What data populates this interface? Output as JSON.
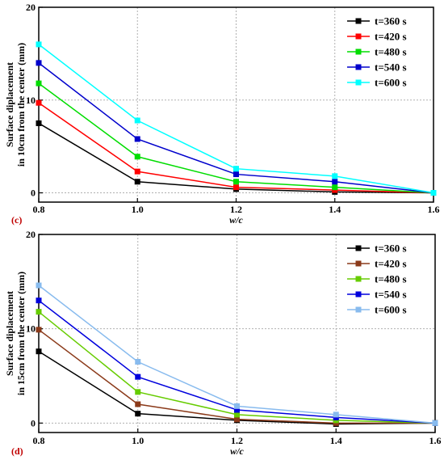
{
  "chart_data": [
    {
      "type": "line",
      "panel_label": "(c)",
      "xlabel": "w/c",
      "ylabel": [
        "Surface diplacement",
        "in 10cm from the center (mm)"
      ],
      "x": [
        0.8,
        1.0,
        1.2,
        1.4,
        1.6
      ],
      "xticks": [
        "0.8",
        "1.0",
        "1.2",
        "1.4",
        "1.6"
      ],
      "yticks": [
        "0",
        "10",
        "20"
      ],
      "xlim": [
        0.8,
        1.6
      ],
      "ylim": [
        -1,
        20
      ],
      "grid": true,
      "legend_position": "top-right",
      "series": [
        {
          "name": "t=360 s",
          "color": "#000000",
          "values": [
            7.5,
            1.2,
            0.4,
            0.1,
            0.0
          ]
        },
        {
          "name": "t=420 s",
          "color": "#ff0000",
          "values": [
            9.7,
            2.3,
            0.6,
            0.3,
            0.0
          ]
        },
        {
          "name": "t=480 s",
          "color": "#00dd00",
          "values": [
            11.8,
            3.9,
            1.2,
            0.6,
            0.0
          ]
        },
        {
          "name": "t=540 s",
          "color": "#0000cc",
          "values": [
            14.0,
            5.8,
            2.0,
            1.2,
            0.0
          ]
        },
        {
          "name": "t=600 s",
          "color": "#00ffff",
          "values": [
            16.0,
            7.8,
            2.6,
            1.8,
            0.0
          ]
        }
      ]
    },
    {
      "type": "line",
      "panel_label": "(d)",
      "xlabel": "w/c",
      "ylabel": [
        "Surface diplacement",
        "in 15cm from the center (mm)"
      ],
      "x": [
        0.8,
        1.0,
        1.2,
        1.4,
        1.6
      ],
      "xticks": [
        "0.8",
        "1.0",
        "1.2",
        "1.4",
        "1.6"
      ],
      "yticks": [
        "0",
        "10",
        "20"
      ],
      "xlim": [
        0.8,
        1.6
      ],
      "ylim": [
        -1,
        20
      ],
      "grid": true,
      "legend_position": "top-right",
      "series": [
        {
          "name": "t=360 s",
          "color": "#000000",
          "values": [
            7.6,
            1.0,
            0.3,
            -0.1,
            0.0
          ]
        },
        {
          "name": "t=420 s",
          "color": "#8b3a1a",
          "values": [
            9.9,
            2.0,
            0.4,
            0.0,
            0.0
          ]
        },
        {
          "name": "t=480 s",
          "color": "#66cc00",
          "values": [
            11.8,
            3.3,
            0.9,
            0.3,
            0.0
          ]
        },
        {
          "name": "t=540 s",
          "color": "#0000dd",
          "values": [
            13.0,
            4.9,
            1.4,
            0.6,
            0.0
          ]
        },
        {
          "name": "t=600 s",
          "color": "#88bbee",
          "values": [
            14.6,
            6.5,
            1.8,
            0.9,
            0.0
          ]
        }
      ]
    }
  ]
}
